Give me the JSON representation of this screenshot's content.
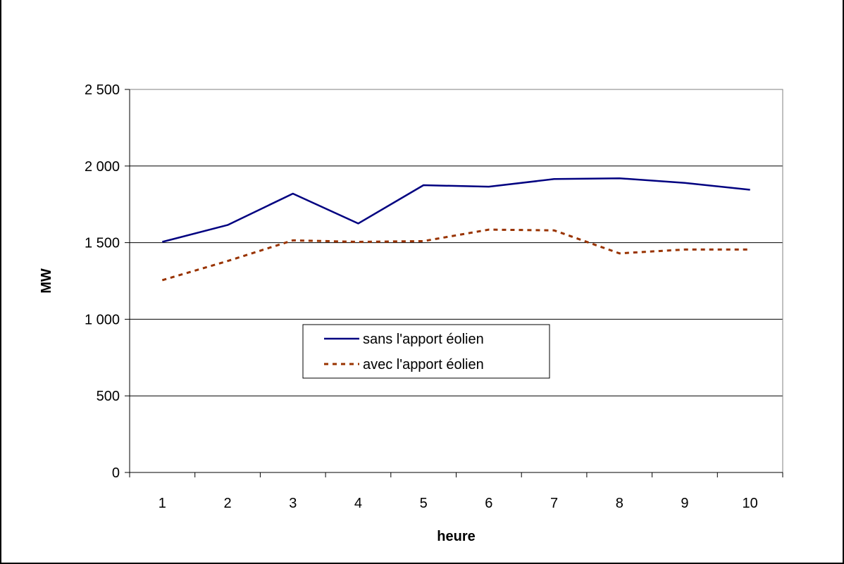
{
  "chart_data": {
    "type": "line",
    "title": "",
    "xlabel": "heure",
    "ylabel": "MW",
    "x": [
      1,
      2,
      3,
      4,
      5,
      6,
      7,
      8,
      9,
      10
    ],
    "x_tick_labels": [
      "1",
      "2",
      "3",
      "4",
      "5",
      "6",
      "7",
      "8",
      "9",
      "10"
    ],
    "y_tick_labels": [
      "0",
      "500",
      "1 000",
      "1 500",
      "2 000",
      "2 500"
    ],
    "y_ticks": [
      0,
      500,
      1000,
      1500,
      2000,
      2500
    ],
    "ylim": [
      0,
      2500
    ],
    "grid": "horizontal",
    "legend_position": "center",
    "series": [
      {
        "name": "sans l'apport éolien",
        "color": "#000080",
        "style": "solid",
        "values": [
          1505,
          1615,
          1820,
          1625,
          1875,
          1865,
          1915,
          1920,
          1890,
          1845
        ]
      },
      {
        "name": "avec l'apport éolien",
        "color": "#993300",
        "style": "dotted",
        "values": [
          1255,
          1380,
          1515,
          1505,
          1510,
          1585,
          1580,
          1430,
          1455,
          1455
        ]
      }
    ]
  }
}
